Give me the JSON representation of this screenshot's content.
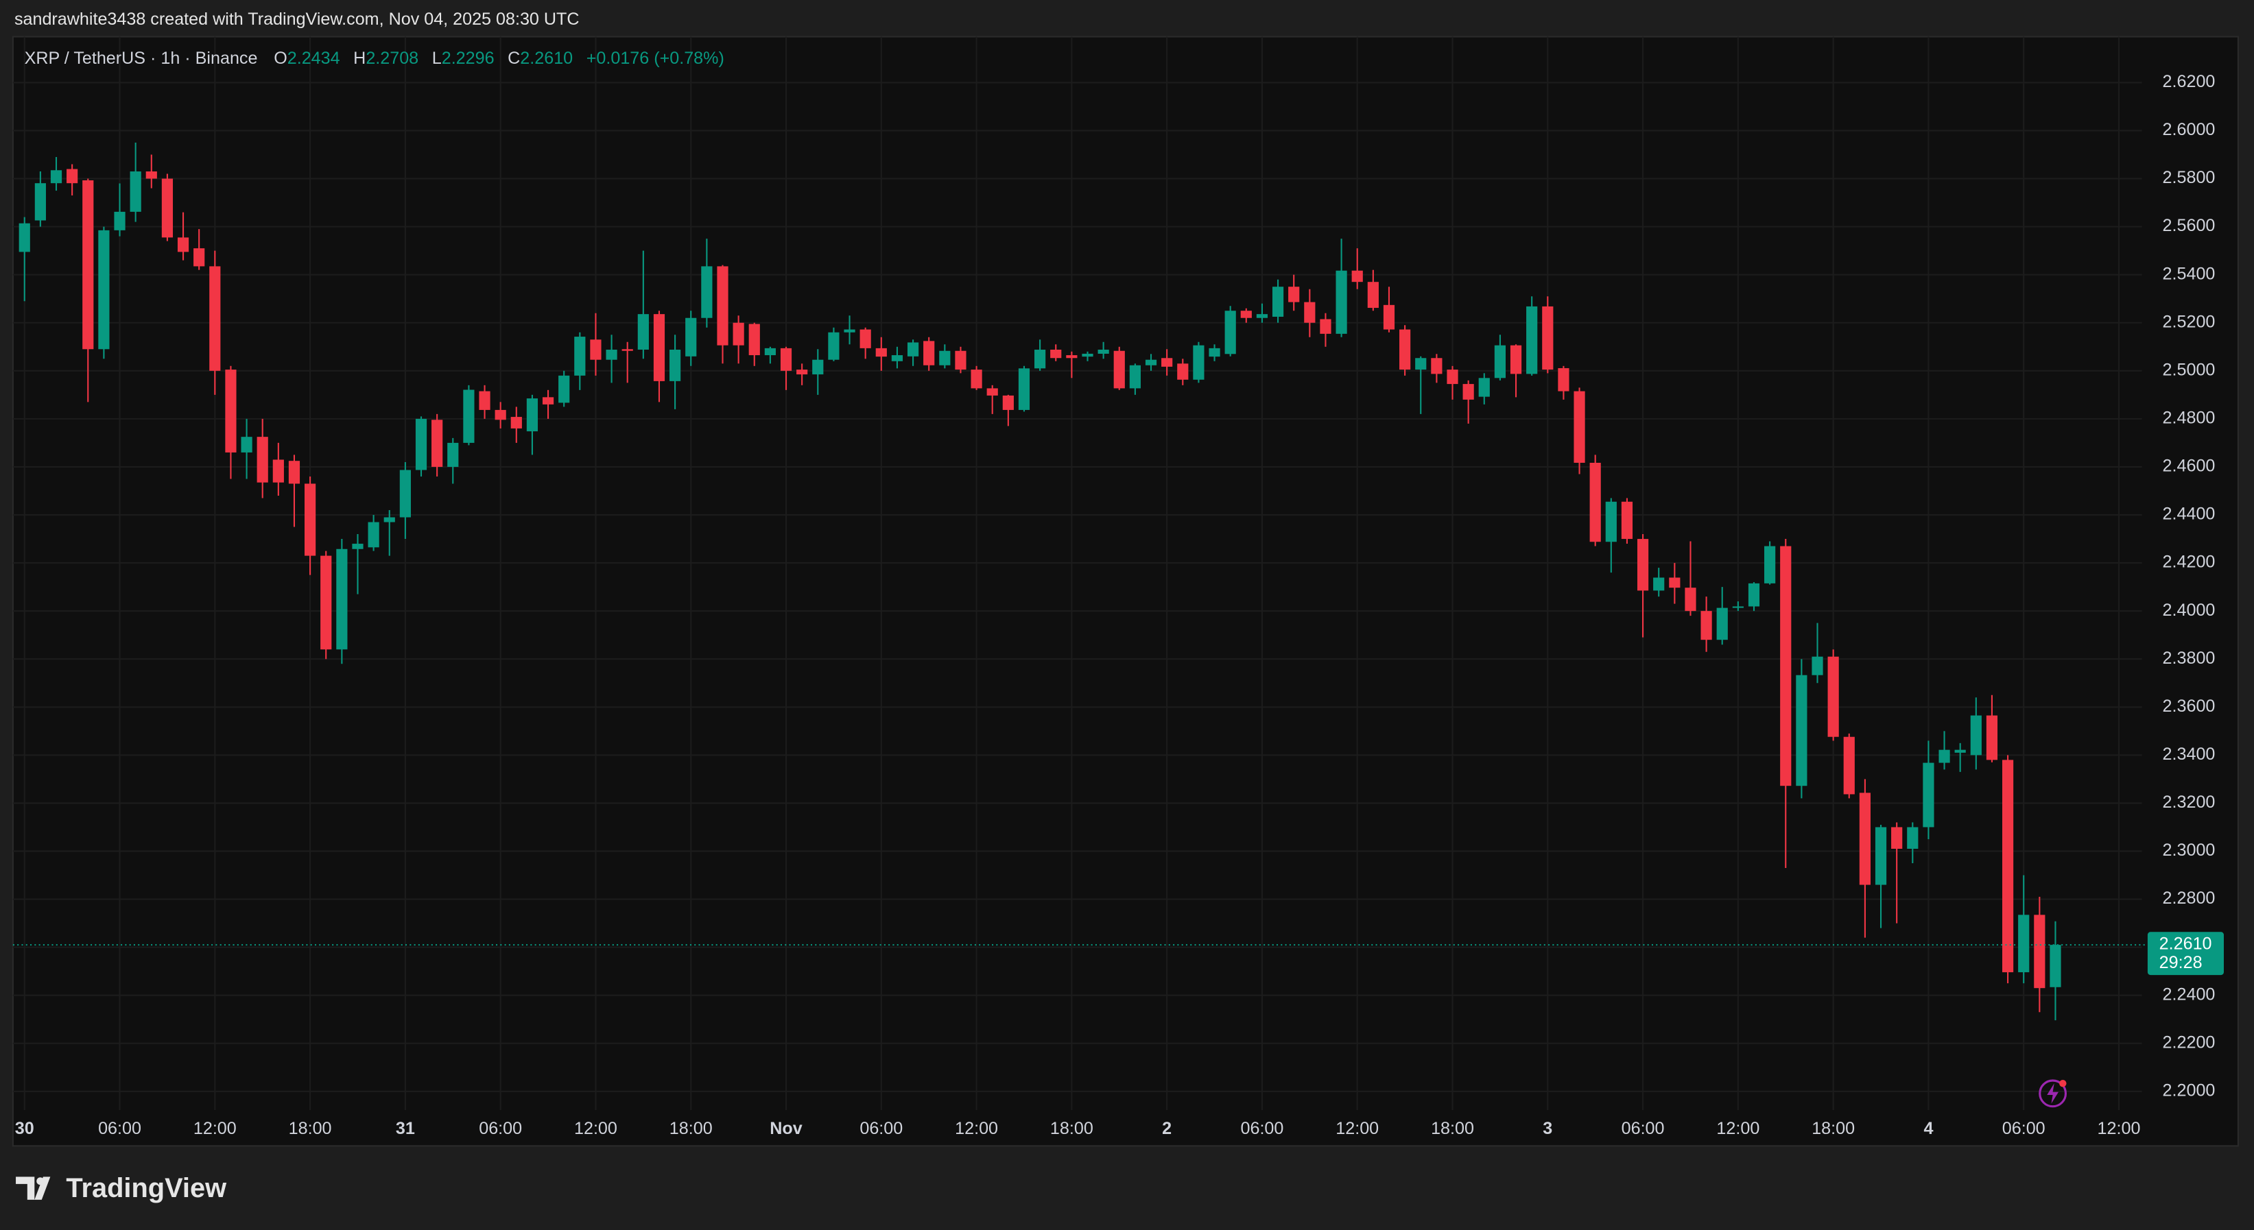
{
  "header": {
    "attribution": "sandrawhite3438 created with TradingView.com, Nov 04, 2025 08:30 UTC"
  },
  "chart_data": {
    "type": "candlestick",
    "title": "XRP / TetherUS · 1h · Binance",
    "ohlc_legend": [
      {
        "key": "O",
        "value": "2.2434"
      },
      {
        "key": "H",
        "value": "2.2708"
      },
      {
        "key": "L",
        "value": "2.2296"
      },
      {
        "key": "C",
        "value": "2.2610"
      }
    ],
    "change": "+0.0176 (+0.78%)",
    "up_color": "#089981",
    "down_color": "#f23645",
    "grid": true,
    "candles": {
      "open": [
        2.5495,
        2.5626,
        2.5781,
        2.584,
        2.5793,
        2.509,
        2.5585,
        2.5662,
        2.583,
        2.58,
        2.5555,
        2.551,
        2.5435,
        2.5005,
        2.466,
        2.4725,
        2.463,
        2.4625,
        2.453,
        2.423,
        2.384,
        2.4258,
        2.4265,
        2.437,
        2.439,
        2.4587,
        2.4796,
        2.46,
        2.47,
        2.4915,
        2.4837,
        2.4808,
        2.4748,
        2.489,
        2.4867,
        2.498,
        2.513,
        2.5046,
        2.509,
        2.5088,
        2.5236,
        2.4957,
        2.506,
        2.522,
        2.5435,
        2.52,
        2.5195,
        2.5065,
        2.5094,
        2.5005,
        2.4985,
        2.5046,
        2.516,
        2.5172,
        2.5094,
        2.504,
        2.506,
        2.5124,
        2.5023,
        2.5083,
        2.5005,
        2.4927,
        2.4897,
        2.4837,
        2.501,
        2.5088,
        2.5065,
        2.5059,
        2.5071,
        2.5083,
        2.4927,
        2.5023,
        2.5053,
        2.503,
        2.4963,
        2.5059,
        2.507,
        2.525,
        2.522,
        2.5225,
        2.535,
        2.5286,
        2.5215,
        2.5154,
        2.5417,
        2.537,
        2.5274,
        2.5172,
        2.5005,
        2.5053,
        2.5005,
        2.4945,
        2.4892,
        2.497,
        2.5106,
        2.4987,
        2.5268,
        2.5011,
        2.4915,
        2.4617,
        2.4288,
        2.4455,
        2.43,
        2.4085,
        2.4139,
        2.4097,
        2.4,
        2.388,
        2.4013,
        2.4019,
        2.4115,
        2.427,
        2.3272,
        2.3733,
        2.381,
        2.3476,
        2.3243,
        2.286,
        2.31,
        2.301,
        2.31,
        2.3368,
        2.341,
        2.34,
        2.3565,
        2.338,
        2.2496,
        2.2735,
        2.2434
      ],
      "high": [
        2.564,
        2.583,
        2.589,
        2.586,
        2.58,
        2.56,
        2.578,
        2.595,
        2.59,
        2.582,
        2.566,
        2.559,
        2.55,
        2.502,
        2.48,
        2.48,
        2.47,
        2.465,
        2.456,
        2.425,
        2.43,
        2.432,
        2.44,
        2.442,
        2.462,
        2.481,
        2.482,
        2.472,
        2.494,
        2.494,
        2.487,
        2.485,
        2.49,
        2.492,
        2.5,
        2.516,
        2.524,
        2.515,
        2.512,
        2.55,
        2.525,
        2.515,
        2.525,
        2.555,
        2.544,
        2.523,
        2.52,
        2.51,
        2.51,
        2.503,
        2.509,
        2.518,
        2.523,
        2.518,
        2.514,
        2.51,
        2.513,
        2.514,
        2.511,
        2.51,
        2.502,
        2.494,
        2.49,
        2.502,
        2.513,
        2.511,
        2.508,
        2.508,
        2.512,
        2.51,
        2.503,
        2.507,
        2.509,
        2.505,
        2.512,
        2.511,
        2.527,
        2.526,
        2.528,
        2.538,
        2.54,
        2.534,
        2.524,
        2.555,
        2.551,
        2.542,
        2.535,
        2.519,
        2.506,
        2.507,
        2.502,
        2.496,
        2.499,
        2.515,
        2.511,
        2.531,
        2.531,
        2.502,
        2.493,
        2.465,
        2.447,
        2.447,
        2.432,
        2.418,
        2.42,
        2.429,
        2.406,
        2.41,
        2.404,
        2.412,
        2.429,
        2.43,
        2.38,
        2.395,
        2.384,
        2.349,
        2.33,
        2.311,
        2.312,
        2.312,
        2.346,
        2.35,
        2.345,
        2.364,
        2.365,
        2.34,
        2.29,
        2.281,
        2.2708
      ],
      "low": [
        2.529,
        2.56,
        2.575,
        2.573,
        2.487,
        2.505,
        2.556,
        2.562,
        2.576,
        2.554,
        2.546,
        2.542,
        2.49,
        2.455,
        2.455,
        2.447,
        2.448,
        2.435,
        2.415,
        2.38,
        2.378,
        2.407,
        2.425,
        2.423,
        2.43,
        2.456,
        2.456,
        2.453,
        2.469,
        2.48,
        2.476,
        2.47,
        2.465,
        2.48,
        2.485,
        2.492,
        2.498,
        2.495,
        2.495,
        2.505,
        2.487,
        2.484,
        2.502,
        2.518,
        2.503,
        2.503,
        2.502,
        2.503,
        2.492,
        2.494,
        2.49,
        2.504,
        2.511,
        2.505,
        2.5,
        2.501,
        2.502,
        2.5,
        2.501,
        2.499,
        2.492,
        2.482,
        2.477,
        2.483,
        2.5,
        2.504,
        2.497,
        2.504,
        2.505,
        2.492,
        2.49,
        2.5,
        2.498,
        2.494,
        2.495,
        2.504,
        2.506,
        2.52,
        2.52,
        2.52,
        2.525,
        2.514,
        2.51,
        2.514,
        2.534,
        2.525,
        2.516,
        2.498,
        2.482,
        2.495,
        2.488,
        2.478,
        2.486,
        2.496,
        2.489,
        2.498,
        2.499,
        2.488,
        2.457,
        2.427,
        2.416,
        2.428,
        2.389,
        2.406,
        2.403,
        2.398,
        2.383,
        2.386,
        2.4,
        2.4,
        2.411,
        2.293,
        2.322,
        2.37,
        2.346,
        2.322,
        2.264,
        2.268,
        2.27,
        2.295,
        2.305,
        2.334,
        2.333,
        2.334,
        2.337,
        2.245,
        2.245,
        2.233,
        2.2296
      ],
      "close": [
        2.5614,
        2.5781,
        2.5835,
        2.5781,
        2.509,
        2.5585,
        2.5662,
        2.583,
        2.58,
        2.5555,
        2.5495,
        2.5435,
        2.5,
        2.466,
        2.4725,
        2.4535,
        2.4535,
        2.453,
        2.423,
        2.384,
        2.4258,
        2.428,
        2.437,
        2.439,
        2.4587,
        2.48,
        2.46,
        2.47,
        2.4921,
        2.4837,
        2.4796,
        2.476,
        2.4885,
        2.486,
        2.498,
        2.5142,
        2.5046,
        2.5088,
        2.5083,
        2.5236,
        2.4957,
        2.5088,
        2.522,
        2.5435,
        2.5106,
        2.5106,
        2.5065,
        2.5094,
        2.5,
        2.4985,
        2.5046,
        2.516,
        2.5172,
        2.5094,
        2.5059,
        2.5065,
        2.5118,
        2.5023,
        2.5083,
        2.5005,
        2.4927,
        2.4897,
        2.4837,
        2.501,
        2.5088,
        2.5053,
        2.5053,
        2.5071,
        2.5088,
        2.4927,
        2.5023,
        2.5046,
        2.5017,
        2.4963,
        2.5106,
        2.5094,
        2.525,
        2.522,
        2.5236,
        2.535,
        2.5286,
        2.52,
        2.5154,
        2.5417,
        2.537,
        2.5262,
        2.5172,
        2.5005,
        2.5053,
        2.4987,
        2.4945,
        2.488,
        2.497,
        2.5106,
        2.4987,
        2.5268,
        2.5005,
        2.4915,
        2.4617,
        2.4288,
        2.4455,
        2.43,
        2.4085,
        2.4139,
        2.4097,
        2.4,
        2.388,
        2.4013,
        2.4019,
        2.4115,
        2.427,
        2.3272,
        2.3733,
        2.381,
        2.3476,
        2.3237,
        2.286,
        2.31,
        2.301,
        2.31,
        2.3368,
        2.3422,
        2.3422,
        2.3565,
        2.338,
        2.2496,
        2.2735,
        2.243,
        2.261
      ]
    },
    "xlim": [
      -0.73,
      133.45
    ],
    "xticks": [
      {
        "value": 0,
        "label": "30"
      },
      {
        "value": 6,
        "label": "06:00"
      },
      {
        "value": 12,
        "label": "12:00"
      },
      {
        "value": 18,
        "label": "18:00"
      },
      {
        "value": 24,
        "label": "31"
      },
      {
        "value": 30,
        "label": "06:00"
      },
      {
        "value": 36,
        "label": "12:00"
      },
      {
        "value": 42,
        "label": "18:00"
      },
      {
        "value": 48,
        "label": "Nov"
      },
      {
        "value": 54,
        "label": "06:00"
      },
      {
        "value": 60,
        "label": "12:00"
      },
      {
        "value": 66,
        "label": "18:00"
      },
      {
        "value": 72,
        "label": "2"
      },
      {
        "value": 78,
        "label": "06:00"
      },
      {
        "value": 84,
        "label": "12:00"
      },
      {
        "value": 90,
        "label": "18:00"
      },
      {
        "value": 96,
        "label": "3"
      },
      {
        "value": 102,
        "label": "06:00"
      },
      {
        "value": 108,
        "label": "12:00"
      },
      {
        "value": 114,
        "label": "18:00"
      },
      {
        "value": 120,
        "label": "4"
      },
      {
        "value": 126,
        "label": "06:00"
      },
      {
        "value": 132,
        "label": "12:00"
      }
    ],
    "ylim": [
      2.1773,
      2.6391
    ],
    "yticks": [
      {
        "value": 2.2,
        "label": "2.2000"
      },
      {
        "value": 2.22,
        "label": "2.2200"
      },
      {
        "value": 2.24,
        "label": "2.2400"
      },
      {
        "value": 2.26,
        "label": "2.2600"
      },
      {
        "value": 2.28,
        "label": "2.2800"
      },
      {
        "value": 2.3,
        "label": "2.3000"
      },
      {
        "value": 2.32,
        "label": "2.3200"
      },
      {
        "value": 2.34,
        "label": "2.3400"
      },
      {
        "value": 2.36,
        "label": "2.3600"
      },
      {
        "value": 2.38,
        "label": "2.3800"
      },
      {
        "value": 2.4,
        "label": "2.4000"
      },
      {
        "value": 2.42,
        "label": "2.4200"
      },
      {
        "value": 2.44,
        "label": "2.4400"
      },
      {
        "value": 2.46,
        "label": "2.4600"
      },
      {
        "value": 2.48,
        "label": "2.4800"
      },
      {
        "value": 2.5,
        "label": "2.5000"
      },
      {
        "value": 2.52,
        "label": "2.5200"
      },
      {
        "value": 2.54,
        "label": "2.5400"
      },
      {
        "value": 2.56,
        "label": "2.5600"
      },
      {
        "value": 2.58,
        "label": "2.5800"
      },
      {
        "value": 2.6,
        "label": "2.6000"
      },
      {
        "value": 2.62,
        "label": "2.6200"
      }
    ],
    "last_price": {
      "value": 2.261,
      "label": "2.2610",
      "countdown": "29:28"
    }
  },
  "footer": {
    "logo": "TradingView"
  }
}
